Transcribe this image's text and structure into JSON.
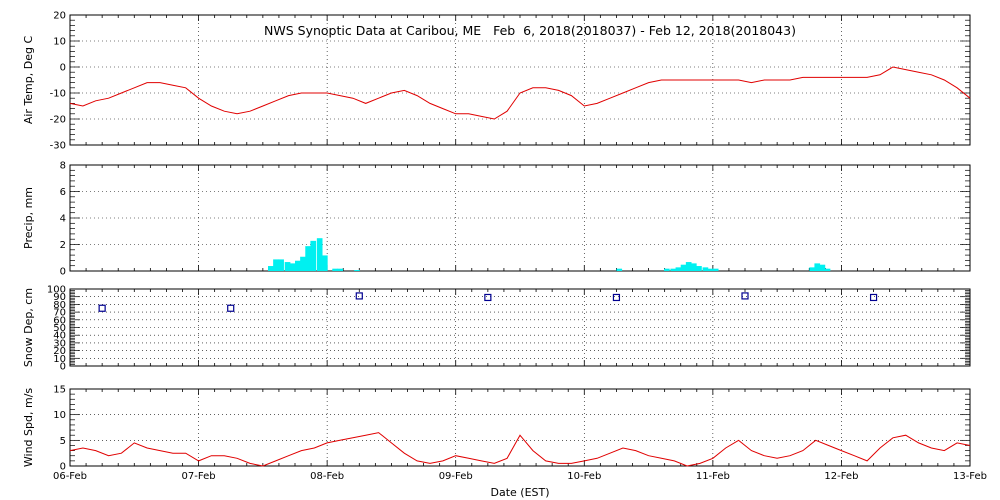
{
  "title": "NWS Synoptic Data at Caribou, ME   Feb  6, 2018(2018037) - Feb 12, 2018(2018043)",
  "x_axis_label": "Date (EST)",
  "x_tick_labels": [
    "06-Feb",
    "07-Feb",
    "08-Feb",
    "09-Feb",
    "10-Feb",
    "11-Feb",
    "12-Feb",
    "13-Feb"
  ],
  "colors": {
    "temp": "#e00000",
    "precip": "#00f0f0",
    "snow": "#000090",
    "wind": "#e00000",
    "grid": "#000000"
  },
  "chart_data": [
    {
      "type": "line",
      "ylabel": "Air Temp, Deg C",
      "ylim": [
        -30,
        20
      ],
      "yticks": [
        -30,
        -20,
        -10,
        0,
        10,
        20
      ],
      "x": [
        0,
        0.1,
        0.2,
        0.3,
        0.4,
        0.5,
        0.6,
        0.7,
        0.8,
        0.9,
        1.0,
        1.1,
        1.2,
        1.3,
        1.4,
        1.5,
        1.6,
        1.7,
        1.8,
        1.9,
        2.0,
        2.1,
        2.2,
        2.3,
        2.4,
        2.5,
        2.6,
        2.7,
        2.8,
        2.9,
        3.0,
        3.1,
        3.2,
        3.3,
        3.4,
        3.5,
        3.6,
        3.7,
        3.8,
        3.9,
        4.0,
        4.1,
        4.2,
        4.3,
        4.4,
        4.5,
        4.6,
        4.7,
        4.8,
        4.9,
        5.0,
        5.1,
        5.2,
        5.3,
        5.4,
        5.5,
        5.6,
        5.7,
        5.8,
        5.9,
        6.0,
        6.1,
        6.2,
        6.3,
        6.4,
        6.5,
        6.6,
        6.7,
        6.8,
        6.9,
        7.0
      ],
      "series": [
        {
          "values": [
            -14,
            -15,
            -13,
            -12,
            -10,
            -8,
            -6,
            -6,
            -7,
            -8,
            -12,
            -15,
            -17,
            -18,
            -17,
            -15,
            -13,
            -11,
            -10,
            -10,
            -10,
            -11,
            -12,
            -14,
            -12,
            -10,
            -9,
            -11,
            -14,
            -16,
            -18,
            -18,
            -19,
            -20,
            -17,
            -10,
            -8,
            -8,
            -9,
            -11,
            -15,
            -14,
            -12,
            -10,
            -8,
            -6,
            -5,
            -5,
            -5,
            -5,
            -5,
            -5,
            -5,
            -6,
            -5,
            -5,
            -5,
            -4,
            -4,
            -4,
            -4,
            -4,
            -4,
            -3,
            0,
            -1,
            -2,
            -3,
            -5,
            -8,
            -12
          ]
        }
      ]
    },
    {
      "type": "bar",
      "ylabel": "Precip, mm",
      "ylim": [
        0,
        8
      ],
      "yticks": [
        0,
        2,
        4,
        6,
        8
      ],
      "bin_hours": 1,
      "series": [
        {
          "x": [
            1.54,
            1.58,
            1.62,
            1.67,
            1.71,
            1.75,
            1.79,
            1.83,
            1.87,
            1.92,
            1.96,
            2.04,
            2.08,
            2.21,
            4.25,
            4.62,
            4.67,
            4.71,
            4.75,
            4.79,
            4.83,
            4.87,
            4.92,
            4.96,
            5.0,
            5.75,
            5.79,
            5.83,
            5.87
          ],
          "values": [
            0.3,
            0.8,
            0.8,
            0.6,
            0.5,
            0.7,
            1.0,
            1.8,
            2.2,
            2.4,
            1.1,
            0.1,
            0.1,
            0.0,
            0.1,
            0.1,
            0.1,
            0.2,
            0.4,
            0.6,
            0.5,
            0.3,
            0.2,
            0.1,
            0.1,
            0.2,
            0.5,
            0.4,
            0.1
          ]
        }
      ]
    },
    {
      "type": "scatter",
      "ylabel": "Snow Dep, cm",
      "ylim": [
        0,
        100
      ],
      "yticks": [
        0,
        10,
        20,
        30,
        40,
        50,
        60,
        70,
        80,
        90,
        100
      ],
      "x": [
        0.25,
        1.25,
        2.25,
        3.25,
        4.25,
        5.25,
        6.25
      ],
      "series": [
        {
          "values": [
            75,
            75,
            91,
            89,
            89,
            91,
            89
          ]
        }
      ]
    },
    {
      "type": "line",
      "ylabel": "Wind Spd, m/s",
      "ylim": [
        0,
        15
      ],
      "yticks": [
        0,
        5,
        10,
        15
      ],
      "x": [
        0,
        0.1,
        0.2,
        0.3,
        0.4,
        0.5,
        0.6,
        0.7,
        0.8,
        0.9,
        1.0,
        1.1,
        1.2,
        1.3,
        1.4,
        1.5,
        1.6,
        1.7,
        1.8,
        1.9,
        2.0,
        2.1,
        2.2,
        2.3,
        2.4,
        2.5,
        2.6,
        2.7,
        2.8,
        2.9,
        3.0,
        3.1,
        3.2,
        3.3,
        3.4,
        3.5,
        3.6,
        3.7,
        3.8,
        3.9,
        4.0,
        4.1,
        4.2,
        4.3,
        4.4,
        4.5,
        4.6,
        4.7,
        4.8,
        4.9,
        5.0,
        5.1,
        5.2,
        5.3,
        5.4,
        5.5,
        5.6,
        5.7,
        5.8,
        5.9,
        6.0,
        6.1,
        6.2,
        6.3,
        6.4,
        6.5,
        6.6,
        6.7,
        6.8,
        6.9,
        7.0
      ],
      "series": [
        {
          "values": [
            3,
            3.5,
            3,
            2,
            2.5,
            4.5,
            3.5,
            3,
            2.5,
            2.5,
            1,
            2,
            2,
            1.5,
            0.5,
            0,
            1,
            2,
            3,
            3.5,
            4.5,
            5,
            5.5,
            6,
            6.5,
            4.5,
            2.5,
            1,
            0.5,
            1,
            2,
            1.5,
            1,
            0.5,
            1.5,
            6,
            3,
            1,
            0.5,
            0.5,
            1,
            1.5,
            2.5,
            3.5,
            3,
            2,
            1.5,
            1,
            0,
            0.5,
            1.5,
            3.5,
            5,
            3,
            2,
            1.5,
            2,
            3,
            5,
            4,
            3,
            2,
            1,
            3.5,
            5.5,
            6,
            4.5,
            3.5,
            3,
            4.5,
            4
          ]
        }
      ]
    }
  ]
}
